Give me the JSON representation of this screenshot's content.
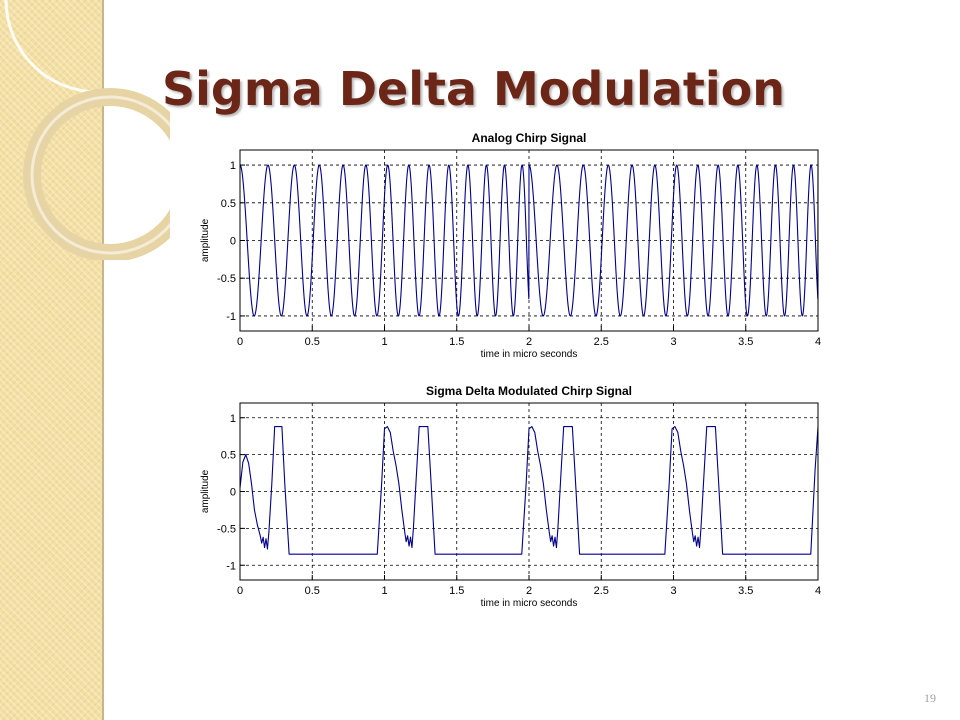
{
  "slide": {
    "title": "Sigma Delta Modulation",
    "page_number": "19"
  },
  "colors": {
    "title": "#6b2617",
    "panel": "#f3dfa2",
    "signal": "#00008b",
    "grid": "#000000"
  },
  "chart_data": [
    {
      "type": "line",
      "title": "Analog Chirp Signal",
      "xlabel": "time in micro seconds",
      "ylabel": "amplitude",
      "xlim": [
        0,
        4
      ],
      "ylim": [
        -1.2,
        1.2
      ],
      "x_ticks": [
        "0",
        "0.5",
        "1",
        "1.5",
        "2",
        "2.5",
        "3",
        "3.5",
        "4"
      ],
      "y_ticks": [
        "1",
        "0.5",
        "0",
        "-0.5",
        "-1"
      ],
      "grid": true,
      "series": [
        {
          "signal": "chirp",
          "period": 2,
          "start_cycles_per_us": 5,
          "end_cycles_per_us": 8.4,
          "amplitude": 1.0
        }
      ]
    },
    {
      "type": "line",
      "title": "Sigma Delta Modulated Chirp Signal",
      "xlabel": "time in micro seconds",
      "ylabel": "amplitude",
      "xlim": [
        0,
        4
      ],
      "ylim": [
        -1.2,
        1.2
      ],
      "x_ticks": [
        "0",
        "0.5",
        "1",
        "1.5",
        "2",
        "2.5",
        "3",
        "3.5",
        "4"
      ],
      "y_ticks": [
        "1",
        "0.5",
        "0",
        "-0.5",
        "-1"
      ],
      "grid": true,
      "series": [
        {
          "signal": "modulated",
          "points": [
            [
              0,
              0.05
            ],
            [
              0.02,
              0.4
            ],
            [
              0.04,
              0.5
            ],
            [
              0.06,
              0.38
            ],
            [
              0.08,
              0.1
            ],
            [
              0.1,
              -0.25
            ],
            [
              0.12,
              -0.45
            ],
            [
              0.14,
              -0.6
            ],
            [
              0.15,
              -0.7
            ],
            [
              0.16,
              -0.62
            ],
            [
              0.17,
              -0.76
            ],
            [
              0.18,
              -0.64
            ],
            [
              0.19,
              -0.78
            ],
            [
              0.2,
              -0.55
            ],
            [
              0.22,
              0.1
            ],
            [
              0.24,
              0.88
            ],
            [
              0.29,
              0.88
            ],
            [
              0.31,
              0.1
            ],
            [
              0.34,
              -0.85
            ],
            [
              0.95,
              -0.85
            ],
            [
              0.98,
              0.1
            ],
            [
              1.0,
              0.85
            ],
            [
              1.02,
              0.88
            ],
            [
              1.04,
              0.8
            ],
            [
              1.06,
              0.55
            ],
            [
              1.08,
              0.35
            ],
            [
              1.1,
              0.1
            ],
            [
              1.12,
              -0.25
            ],
            [
              1.14,
              -0.55
            ],
            [
              1.15,
              -0.68
            ],
            [
              1.16,
              -0.6
            ],
            [
              1.17,
              -0.74
            ],
            [
              1.18,
              -0.62
            ],
            [
              1.19,
              -0.76
            ],
            [
              1.2,
              -0.5
            ],
            [
              1.22,
              0.2
            ],
            [
              1.24,
              0.88
            ],
            [
              1.3,
              0.88
            ],
            [
              1.32,
              0.2
            ],
            [
              1.35,
              -0.85
            ],
            [
              1.95,
              -0.85
            ],
            [
              1.98,
              0.1
            ],
            [
              2.0,
              0.85
            ],
            [
              2.02,
              0.88
            ],
            [
              2.04,
              0.8
            ],
            [
              2.06,
              0.55
            ],
            [
              2.08,
              0.35
            ],
            [
              2.1,
              0.1
            ],
            [
              2.12,
              -0.25
            ],
            [
              2.14,
              -0.55
            ],
            [
              2.15,
              -0.68
            ],
            [
              2.16,
              -0.6
            ],
            [
              2.17,
              -0.74
            ],
            [
              2.18,
              -0.62
            ],
            [
              2.19,
              -0.76
            ],
            [
              2.2,
              -0.5
            ],
            [
              2.22,
              0.2
            ],
            [
              2.24,
              0.88
            ],
            [
              2.3,
              0.88
            ],
            [
              2.32,
              0.2
            ],
            [
              2.35,
              -0.85
            ],
            [
              2.94,
              -0.85
            ],
            [
              2.97,
              0.1
            ],
            [
              2.99,
              0.85
            ],
            [
              3.01,
              0.88
            ],
            [
              3.03,
              0.8
            ],
            [
              3.05,
              0.55
            ],
            [
              3.07,
              0.35
            ],
            [
              3.09,
              0.1
            ],
            [
              3.11,
              -0.25
            ],
            [
              3.13,
              -0.55
            ],
            [
              3.14,
              -0.68
            ],
            [
              3.15,
              -0.6
            ],
            [
              3.16,
              -0.74
            ],
            [
              3.17,
              -0.62
            ],
            [
              3.18,
              -0.76
            ],
            [
              3.19,
              -0.5
            ],
            [
              3.21,
              0.2
            ],
            [
              3.23,
              0.88
            ],
            [
              3.29,
              0.88
            ],
            [
              3.31,
              0.2
            ],
            [
              3.34,
              -0.85
            ],
            [
              3.95,
              -0.85
            ],
            [
              3.98,
              0.3
            ],
            [
              4.0,
              0.88
            ]
          ]
        }
      ]
    }
  ]
}
